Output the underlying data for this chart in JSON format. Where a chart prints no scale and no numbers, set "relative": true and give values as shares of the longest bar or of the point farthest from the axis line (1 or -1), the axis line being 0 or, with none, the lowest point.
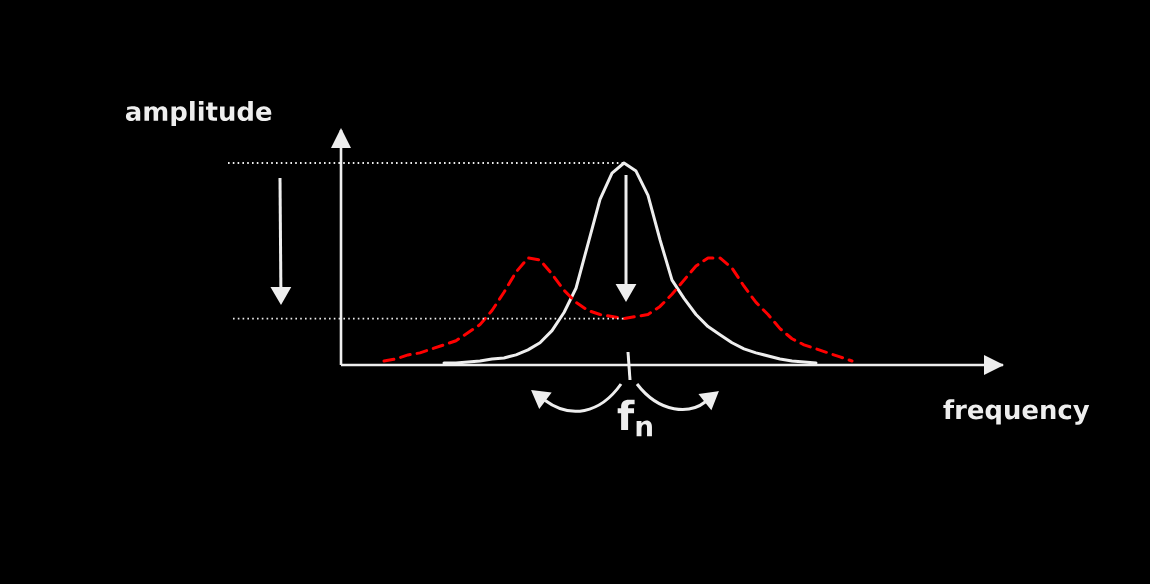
{
  "chart_data": {
    "type": "line",
    "relative": true,
    "xlabel": "frequency",
    "ylabel": "amplitude",
    "marker": "none",
    "categories": [
      null,
      null,
      null,
      null,
      null,
      null,
      null,
      null,
      null,
      null,
      null,
      null,
      null,
      null,
      null,
      null,
      null,
      null,
      null,
      null,
      null,
      null,
      null,
      null,
      null,
      null,
      null,
      null,
      null,
      null,
      null,
      null,
      null,
      null,
      null,
      null,
      null,
      null,
      null,
      null
    ],
    "series": [
      {
        "color": "#eeeeee",
        "line_style": "solid",
        "values": [
          null,
          null,
          null,
          null,
          null,
          0.01,
          0.01,
          0.015,
          0.02,
          0.03,
          0.035,
          0.05,
          0.075,
          0.11,
          0.17,
          0.26,
          0.38,
          0.6,
          0.82,
          0.95,
          1.0,
          0.96,
          0.84,
          0.62,
          0.42,
          0.33,
          0.25,
          0.19,
          0.15,
          0.11,
          0.08,
          0.06,
          0.045,
          0.03,
          0.02,
          0.015,
          0.01,
          null,
          null,
          null
        ]
      },
      {
        "color": "#ff0000",
        "line_style": "dashed",
        "values": [
          0.02,
          0.03,
          0.05,
          0.06,
          0.08,
          0.1,
          0.12,
          0.16,
          0.2,
          0.27,
          0.36,
          0.46,
          0.53,
          0.52,
          0.45,
          0.37,
          0.31,
          0.27,
          0.25,
          0.24,
          0.23,
          0.24,
          0.25,
          0.29,
          0.35,
          0.42,
          0.49,
          0.53,
          0.53,
          0.48,
          0.39,
          0.31,
          0.25,
          0.18,
          0.13,
          0.1,
          0.08,
          0.06,
          0.04,
          0.02
        ]
      }
    ],
    "ref_lines": [
      {
        "axis": "y",
        "value": 1.0,
        "color": "#eeeeee",
        "line_style": "dotted"
      },
      {
        "axis": "y",
        "value": 0.23,
        "color": "#eeeeee",
        "line_style": "dotted"
      }
    ],
    "annotations": [
      "f$_{n}$"
    ]
  }
}
